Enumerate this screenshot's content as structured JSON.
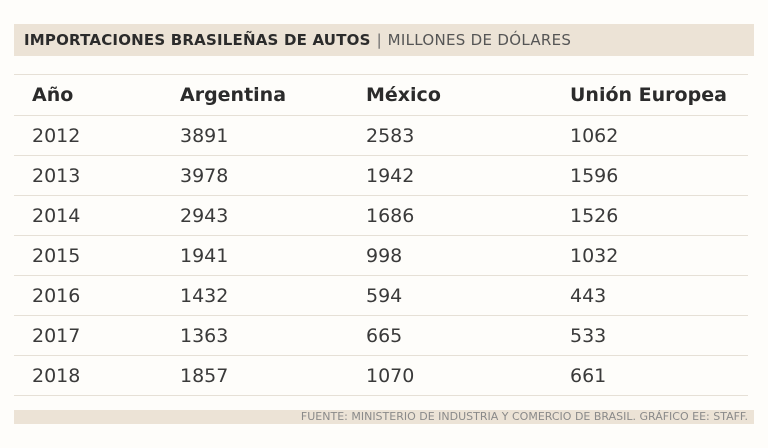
{
  "header": {
    "title": "IMPORTACIONES BRASILEÑAS DE AUTOS",
    "separator": "|",
    "subtitle": "MILLONES DE DÓLARES"
  },
  "footer": {
    "source": "FUENTE: MINISTERIO DE INDUSTRIA Y COMERCIO DE BRASIL. GRÁFICO EE: STAFF."
  },
  "chart_data": {
    "type": "table",
    "title": "IMPORTACIONES BRASILEÑAS DE AUTOS",
    "subtitle": "MILLONES DE DÓLARES",
    "columns": [
      "Año",
      "Argentina",
      "México",
      "Unión Europea"
    ],
    "rows": [
      [
        "2012",
        "3891",
        "2583",
        "1062"
      ],
      [
        "2013",
        "3978",
        "1942",
        "1596"
      ],
      [
        "2014",
        "2943",
        "1686",
        "1526"
      ],
      [
        "2015",
        "1941",
        "998",
        "1032"
      ],
      [
        "2016",
        "1432",
        "594",
        "443"
      ],
      [
        "2017",
        "1363",
        "665",
        "533"
      ],
      [
        "2018",
        "1857",
        "1070",
        "661"
      ]
    ]
  }
}
